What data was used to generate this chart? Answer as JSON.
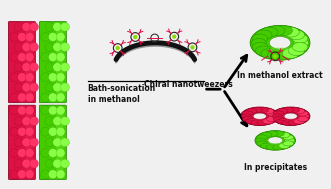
{
  "bg_color": "#f0f0f0",
  "label_nanotweezers": "Chiral nanotweezers",
  "label_bath": "Bath-sonication\nin methanol",
  "label_methanol": "In methanol extract",
  "label_precipitates": "In precipitates",
  "red_color": "#dd1144",
  "red_dark": "#880022",
  "red_mid": "#cc2255",
  "red_light": "#ff3366",
  "green_color": "#44cc00",
  "green_dark": "#228800",
  "green_mid": "#55dd11",
  "green_light": "#88ff44",
  "text_color": "#111111",
  "font_size_labels": 5.5
}
